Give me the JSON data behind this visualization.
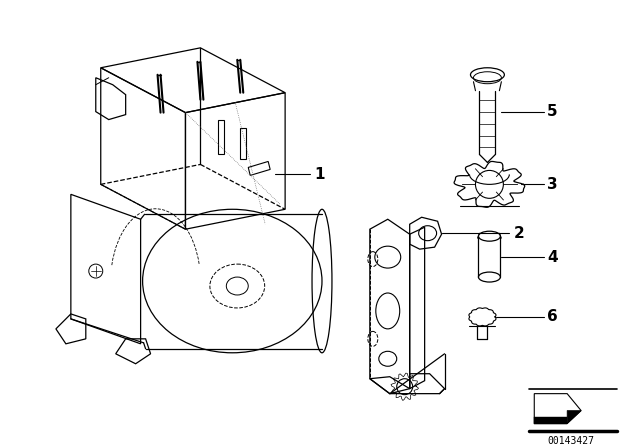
{
  "background_color": "#ffffff",
  "line_color": "#000000",
  "watermark": "00143427",
  "figsize": [
    6.4,
    4.48
  ],
  "dpi": 100
}
